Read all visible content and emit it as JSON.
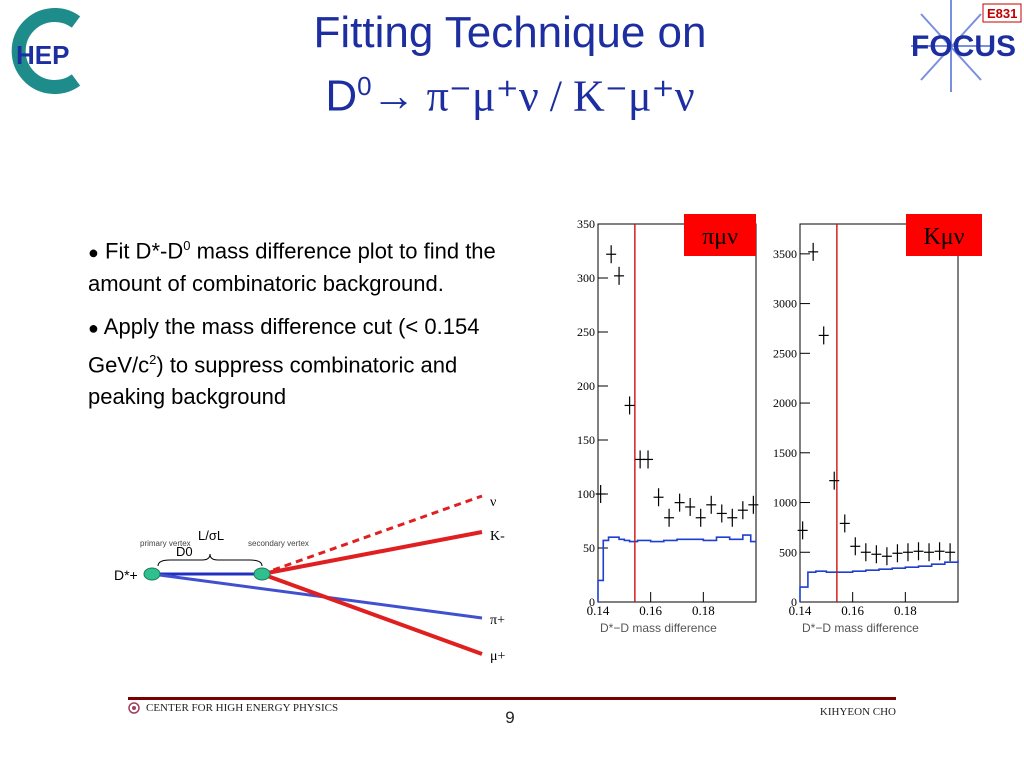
{
  "title": {
    "line1": "Fitting Technique on",
    "line2_D": "D",
    "line2_sup0": "0",
    "line2_rest": "→ π⁻μ⁺ν / K⁻μ⁺ν"
  },
  "logos": {
    "left_text": "HEP",
    "right_badge": "E831",
    "right_text": "FOCUS"
  },
  "bullets": [
    {
      "a": "Fit D*-D",
      "sup": "0",
      "b": " mass difference plot to find the amount of combinatoric background."
    },
    {
      "a": "Apply the mass difference cut (< 0.154 GeV/c",
      "sup": "2",
      "b": ") to suppress combinatoric and peaking background"
    }
  ],
  "decay": {
    "primary_vertex": "primary vertex",
    "secondary_vertex": "secondary vertex",
    "d0": "D0",
    "lsigma": "L/σL",
    "dstar": "D*+",
    "nu": "ν",
    "k": "K-",
    "pi": "π+",
    "mu": "μ+"
  },
  "colors": {
    "title_blue": "#1c2ea0",
    "hist_blue": "#1f3fd0",
    "cut_red": "#d01010",
    "label_red": "#ff0000",
    "footer_line": "#7a0000"
  },
  "chart_data": [
    {
      "type": "scatter",
      "label": "πμν",
      "xlabel": "D*−D mass difference",
      "xlim": [
        0.14,
        0.2
      ],
      "ylim": [
        0,
        350
      ],
      "y_ticks": [
        0,
        50,
        100,
        150,
        200,
        250,
        300,
        350
      ],
      "x_ticks": [
        0.14,
        0.16,
        0.18
      ],
      "cut": 0.154,
      "points": {
        "x": [
          0.141,
          0.145,
          0.148,
          0.152,
          0.156,
          0.159,
          0.163,
          0.167,
          0.171,
          0.175,
          0.179,
          0.183,
          0.187,
          0.191,
          0.195,
          0.199
        ],
        "y": [
          100,
          322,
          302,
          182,
          132,
          132,
          97,
          78,
          92,
          88,
          78,
          90,
          82,
          78,
          85,
          90
        ]
      },
      "background_hist": {
        "x": [
          0.14,
          0.142,
          0.144,
          0.146,
          0.148,
          0.15,
          0.152,
          0.155,
          0.16,
          0.165,
          0.17,
          0.175,
          0.18,
          0.185,
          0.19,
          0.195,
          0.198
        ],
        "y": [
          20,
          57,
          60,
          60,
          58,
          57,
          56,
          57,
          56,
          57,
          58,
          58,
          57,
          60,
          58,
          62,
          56
        ]
      }
    },
    {
      "type": "scatter",
      "label": "Kμν",
      "xlabel": "D*−D mass difference",
      "xlim": [
        0.14,
        0.2
      ],
      "ylim": [
        0,
        3800
      ],
      "y_ticks": [
        0,
        500,
        1000,
        1500,
        2000,
        2500,
        3000,
        3500
      ],
      "x_ticks": [
        0.14,
        0.16,
        0.18
      ],
      "cut": 0.154,
      "points": {
        "x": [
          0.141,
          0.145,
          0.149,
          0.153,
          0.157,
          0.161,
          0.165,
          0.169,
          0.173,
          0.177,
          0.181,
          0.185,
          0.189,
          0.193,
          0.197
        ],
        "y": [
          720,
          3520,
          2680,
          1220,
          790,
          560,
          500,
          480,
          460,
          490,
          500,
          510,
          500,
          510,
          500
        ]
      },
      "background_hist": {
        "x": [
          0.14,
          0.143,
          0.146,
          0.15,
          0.155,
          0.16,
          0.165,
          0.17,
          0.175,
          0.18,
          0.185,
          0.19,
          0.195,
          0.2
        ],
        "y": [
          150,
          300,
          310,
          300,
          300,
          310,
          320,
          330,
          340,
          350,
          360,
          380,
          400,
          420
        ]
      }
    }
  ],
  "footer": {
    "left": "CENTER FOR HIGH ENERGY PHYSICS",
    "page": "9",
    "right": "KIHYEON CHO"
  }
}
